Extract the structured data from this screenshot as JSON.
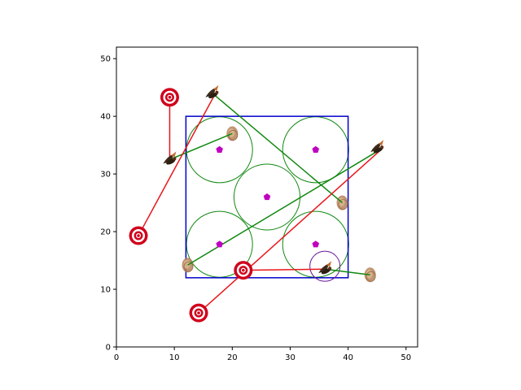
{
  "chart_data": {
    "type": "scatter",
    "title": "",
    "xlabel": "",
    "ylabel": "",
    "xlim": [
      0,
      52
    ],
    "ylim": [
      0,
      52
    ],
    "xticks": [
      0,
      10,
      20,
      30,
      40,
      50
    ],
    "yticks": [
      0,
      10,
      20,
      30,
      40,
      50
    ],
    "grid": false,
    "region": {
      "x0": 12,
      "y0": 12,
      "x1": 40,
      "y1": 40,
      "color": "#0000cc"
    },
    "sensor_centers": [
      [
        17.8,
        34.2
      ],
      [
        34.4,
        34.2
      ],
      [
        26.0,
        26.0
      ],
      [
        17.8,
        17.8
      ],
      [
        34.4,
        17.8
      ]
    ],
    "coverage_circles": [
      {
        "x": 17.8,
        "y": 34.2,
        "r": 5.7
      },
      {
        "x": 34.4,
        "y": 34.2,
        "r": 5.7
      },
      {
        "x": 26.0,
        "y": 26.0,
        "r": 5.7
      },
      {
        "x": 17.8,
        "y": 17.8,
        "r": 5.7
      },
      {
        "x": 34.4,
        "y": 17.8,
        "r": 5.7
      }
    ],
    "highlight_circle": {
      "x": 36.0,
      "y": 14.0,
      "r": 2.6,
      "color": "#6a1b9a"
    },
    "targets": [
      [
        9.2,
        43.3
      ],
      [
        3.8,
        19.3
      ],
      [
        14.2,
        5.9
      ],
      [
        21.9,
        13.3
      ]
    ],
    "agents": [
      {
        "name": "bird",
        "x": 9.2,
        "y": 32.5
      },
      {
        "name": "bird",
        "x": 16.5,
        "y": 44.0
      },
      {
        "name": "bird",
        "x": 45.0,
        "y": 34.5
      },
      {
        "name": "bird",
        "x": 36.0,
        "y": 13.5
      }
    ],
    "nests": [
      [
        20.0,
        37.0
      ],
      [
        39.0,
        25.0
      ],
      [
        12.3,
        14.2
      ],
      [
        43.8,
        12.5
      ]
    ],
    "red_links": [
      [
        [
          9.2,
          43.3
        ],
        [
          9.2,
          32.5
        ]
      ],
      [
        [
          3.8,
          19.3
        ],
        [
          17.0,
          43.8
        ]
      ],
      [
        [
          14.2,
          5.9
        ],
        [
          46.0,
          34.5
        ]
      ],
      [
        [
          21.9,
          13.3
        ],
        [
          36.0,
          13.5
        ]
      ]
    ],
    "green_links": [
      [
        [
          9.2,
          32.5
        ],
        [
          20.0,
          37.0
        ]
      ],
      [
        [
          16.8,
          43.8
        ],
        [
          39.0,
          25.0
        ]
      ],
      [
        [
          45.5,
          34.2
        ],
        [
          12.3,
          14.2
        ]
      ],
      [
        [
          36.0,
          13.5
        ],
        [
          43.8,
          12.5
        ]
      ]
    ],
    "colors": {
      "target": "#d0021b",
      "red_link": "#e8161b",
      "green_link": "#118811",
      "sensor": "#c000c0",
      "bird": "#3b2a1a",
      "nest": "#b5835a"
    }
  }
}
